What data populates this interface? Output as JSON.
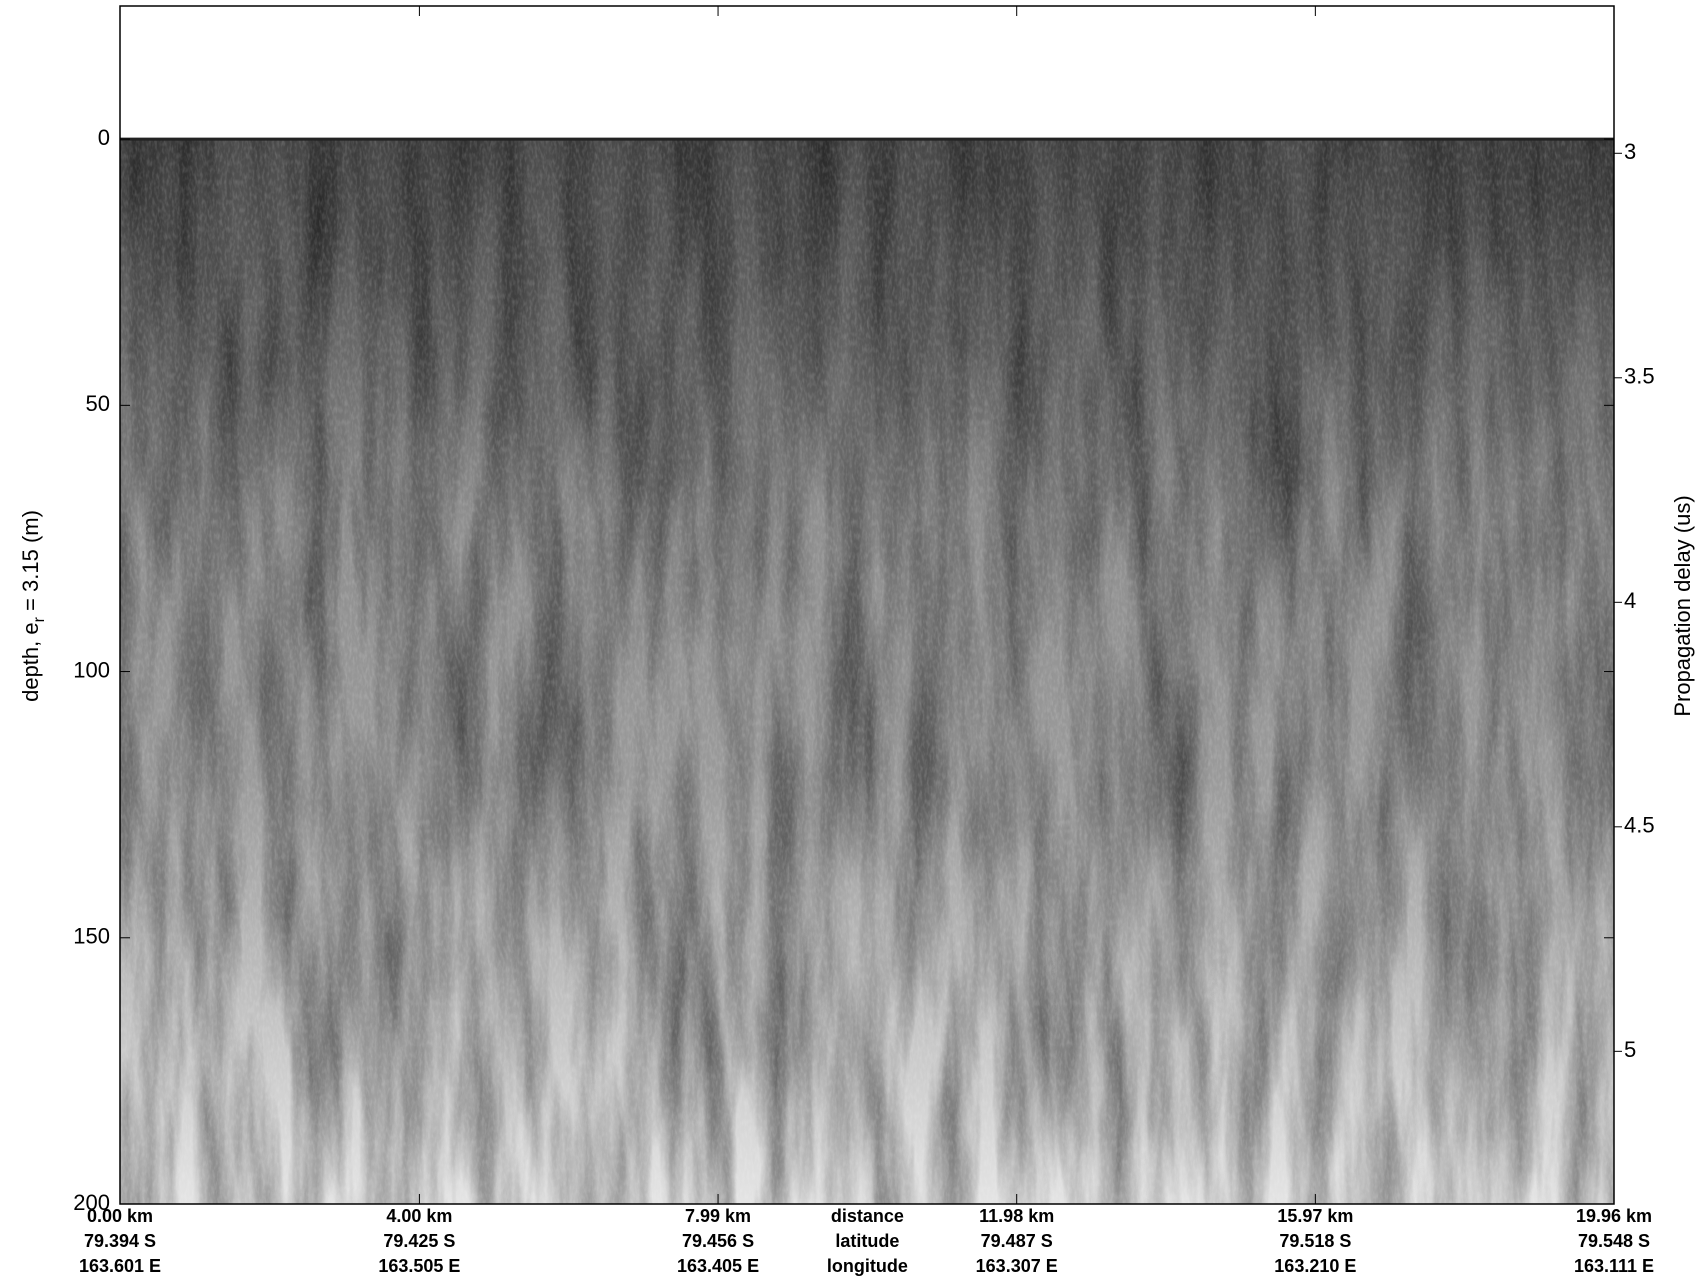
{
  "chart_data": {
    "type": "radargram",
    "ylabel": [
      "depth, e",
      "r",
      " = 3.15 (m)"
    ],
    "y2label": "Propagation delay (us)",
    "ylim": [
      -25,
      200
    ],
    "yticks": [
      0,
      50,
      100,
      150,
      200
    ],
    "y2lim": [
      2.672,
      5.34
    ],
    "y2ticks": [
      3,
      3.5,
      4,
      4.5,
      5
    ],
    "xlim": [
      0,
      19.96
    ],
    "xticks": [
      {
        "value": 0,
        "label": "0.00 km"
      },
      {
        "value": 4,
        "label": "4.00 km"
      },
      {
        "value": 7.99,
        "label": "7.99 km"
      },
      {
        "value": 11.98,
        "label": "11.98 km"
      },
      {
        "value": 15.97,
        "label": "15.97 km"
      },
      {
        "value": 19.96,
        "label": "19.96 km"
      }
    ],
    "latitude": [
      "79.394 S",
      "79.425 S",
      "79.456 S",
      "79.487 S",
      "79.518 S",
      "79.548 S"
    ],
    "longitude": [
      "163.601 E",
      "163.505 E",
      "163.405 E",
      "163.307 E",
      "163.210 E",
      "163.111 E"
    ],
    "row_labels": [
      "distance",
      "latitude",
      "longitude"
    ]
  }
}
